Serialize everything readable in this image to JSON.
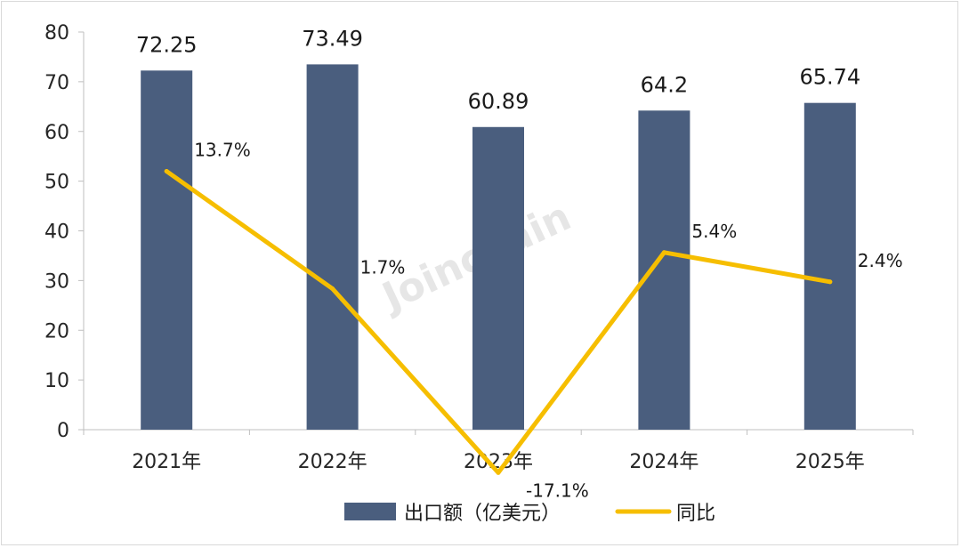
{
  "chart_data": {
    "type": "bar+line",
    "categories": [
      "2021年",
      "2022年",
      "2023年",
      "2024年",
      "2025年"
    ],
    "series": [
      {
        "name": "出口额（亿美元）",
        "kind": "bar",
        "color": "#4a5e7e",
        "values": [
          72.25,
          73.49,
          60.89,
          64.2,
          65.74
        ],
        "labels": [
          "72.25",
          "73.49",
          "60.89",
          "64.2",
          "65.74"
        ]
      },
      {
        "name": "同比",
        "kind": "line",
        "color": "#f6be00",
        "values_pct": [
          13.7,
          1.7,
          -17.1,
          5.4,
          2.4
        ],
        "labels": [
          "13.7%",
          "1.7%",
          "-17.1%",
          "5.4%",
          "2.4%"
        ]
      }
    ],
    "y_axis": {
      "min": 0,
      "max": 80,
      "step": 10,
      "ticks": [
        "0",
        "10",
        "20",
        "30",
        "40",
        "50",
        "60",
        "70",
        "80"
      ]
    },
    "legend_position": "bottom",
    "grid": false,
    "watermark": "Joinchain"
  }
}
